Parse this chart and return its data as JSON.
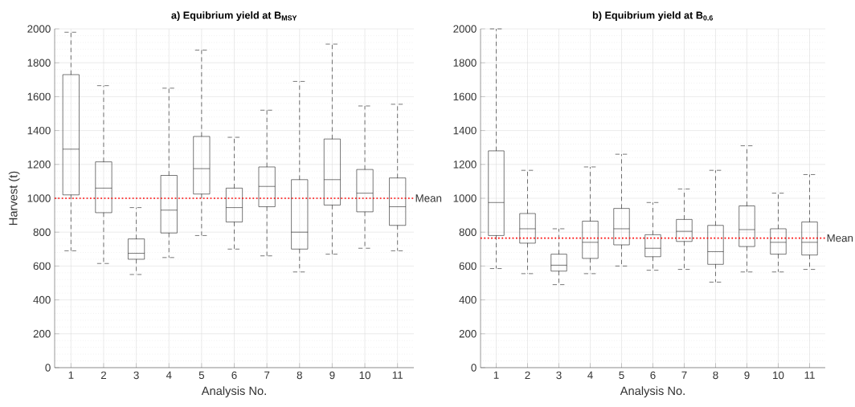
{
  "chart_data": [
    {
      "type": "box",
      "title": "a) Equibrium yield at B$_{MSY}$",
      "xlabel": "Analysis No.",
      "ylabel": "Harvest (t)",
      "categories": [
        "1",
        "2",
        "3",
        "4",
        "5",
        "6",
        "7",
        "8",
        "9",
        "10",
        "11"
      ],
      "boxes": [
        {
          "low": 690,
          "q1": 1020,
          "median": 1290,
          "q3": 1730,
          "high": 1980
        },
        {
          "low": 615,
          "q1": 915,
          "median": 1060,
          "q3": 1215,
          "high": 1665
        },
        {
          "low": 550,
          "q1": 640,
          "median": 675,
          "q3": 760,
          "high": 945
        },
        {
          "low": 650,
          "q1": 795,
          "median": 930,
          "q3": 1135,
          "high": 1650
        },
        {
          "low": 780,
          "q1": 1025,
          "median": 1175,
          "q3": 1365,
          "high": 1875
        },
        {
          "low": 700,
          "q1": 860,
          "median": 945,
          "q3": 1060,
          "high": 1360
        },
        {
          "low": 660,
          "q1": 950,
          "median": 1070,
          "q3": 1185,
          "high": 1520
        },
        {
          "low": 565,
          "q1": 700,
          "median": 800,
          "q3": 1110,
          "high": 1690
        },
        {
          "low": 670,
          "q1": 960,
          "median": 1110,
          "q3": 1350,
          "high": 1910
        },
        {
          "low": 705,
          "q1": 920,
          "median": 1030,
          "q3": 1170,
          "high": 1545
        },
        {
          "low": 690,
          "q1": 840,
          "median": 950,
          "q3": 1120,
          "high": 1555
        }
      ],
      "color": "#000000",
      "ylim": [
        0,
        2000
      ],
      "yticks": [
        0,
        200,
        400,
        600,
        800,
        1000,
        1200,
        1400,
        1600,
        1800,
        2000
      ],
      "grid": true,
      "ref_lines": [
        {
          "axis": "y",
          "value": 1000,
          "label": "Mean",
          "color": "#ff0000",
          "line_style": "dotted"
        }
      ]
    },
    {
      "type": "box",
      "title": "b) Equibrium yield at B$_{0.6}$",
      "xlabel": "Analysis No.",
      "categories": [
        "1",
        "2",
        "3",
        "4",
        "5",
        "6",
        "7",
        "8",
        "9",
        "10",
        "11"
      ],
      "boxes": [
        {
          "low": 585,
          "q1": 780,
          "median": 975,
          "q3": 1280,
          "high": 2000
        },
        {
          "low": 555,
          "q1": 735,
          "median": 820,
          "q3": 910,
          "high": 1165
        },
        {
          "low": 490,
          "q1": 570,
          "median": 605,
          "q3": 670,
          "high": 820
        },
        {
          "low": 555,
          "q1": 645,
          "median": 740,
          "q3": 865,
          "high": 1185
        },
        {
          "low": 600,
          "q1": 725,
          "median": 820,
          "q3": 940,
          "high": 1260
        },
        {
          "low": 575,
          "q1": 655,
          "median": 705,
          "q3": 785,
          "high": 975
        },
        {
          "low": 580,
          "q1": 745,
          "median": 805,
          "q3": 875,
          "high": 1055
        },
        {
          "low": 505,
          "q1": 610,
          "median": 685,
          "q3": 840,
          "high": 1165
        },
        {
          "low": 565,
          "q1": 715,
          "median": 815,
          "q3": 955,
          "high": 1310
        },
        {
          "low": 565,
          "q1": 670,
          "median": 740,
          "q3": 820,
          "high": 1030
        },
        {
          "low": 580,
          "q1": 665,
          "median": 740,
          "q3": 860,
          "high": 1140
        }
      ],
      "color": "#000000",
      "ylim": [
        0,
        2000
      ],
      "yticks": [
        0,
        200,
        400,
        600,
        800,
        1000,
        1200,
        1400,
        1600,
        1800,
        2000
      ],
      "grid": true,
      "ref_lines": [
        {
          "axis": "y",
          "value": 765,
          "label": "Mean",
          "color": "#ff0000",
          "line_style": "dotted"
        }
      ]
    }
  ]
}
